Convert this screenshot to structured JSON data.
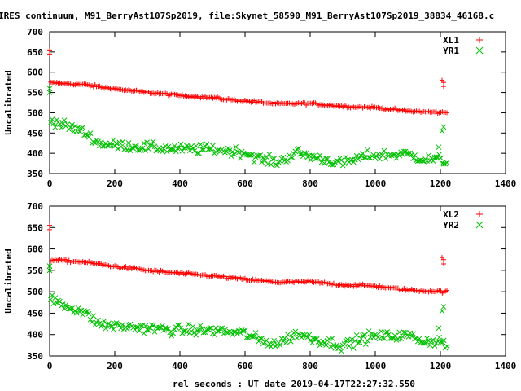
{
  "title": "IRES continuum, M91_BerryAst107Sp2019, file:Skynet_58590_M91_BerryAst107Sp2019_38834_46168.c",
  "chart_data": [
    {
      "type": "scatter",
      "ylabel": "Uncalibrated",
      "xlabel": "",
      "xlim": [
        0,
        1400
      ],
      "ylim": [
        350,
        700
      ],
      "xticks": [
        0,
        200,
        400,
        600,
        800,
        1000,
        1200,
        1400
      ],
      "yticks": [
        350,
        400,
        450,
        500,
        550,
        600,
        650,
        700
      ],
      "legend_position": "top-right",
      "series": [
        {
          "name": "XL1",
          "color": "#ff0000",
          "marker": "plus",
          "trend": [
            [
              3,
              574
            ],
            [
              100,
              570
            ],
            [
              200,
              559
            ],
            [
              300,
              550
            ],
            [
              400,
              543
            ],
            [
              500,
              537
            ],
            [
              600,
              529
            ],
            [
              700,
              522
            ],
            [
              800,
              523
            ],
            [
              900,
              516
            ],
            [
              1000,
              513
            ],
            [
              1100,
              504
            ],
            [
              1220,
              500
            ]
          ],
          "outliers": [
            [
              0,
              655
            ],
            [
              0,
              645
            ],
            [
              1205,
              580
            ],
            [
              1210,
              575
            ],
            [
              1210,
              565
            ]
          ],
          "noise": 3
        },
        {
          "name": "YR1",
          "color": "#00c000",
          "marker": "cross",
          "trend": [
            [
              3,
              483
            ],
            [
              50,
              467
            ],
            [
              100,
              455
            ],
            [
              150,
              425
            ],
            [
              200,
              420
            ],
            [
              300,
              415
            ],
            [
              400,
              410
            ],
            [
              500,
              410
            ],
            [
              600,
              402
            ],
            [
              650,
              385
            ],
            [
              700,
              378
            ],
            [
              760,
              402
            ],
            [
              800,
              392
            ],
            [
              900,
              375
            ],
            [
              980,
              395
            ],
            [
              1000,
              395
            ],
            [
              1100,
              398
            ],
            [
              1150,
              385
            ],
            [
              1200,
              385
            ],
            [
              1220,
              375
            ]
          ],
          "outliers": [
            [
              0,
              550
            ],
            [
              0,
              560
            ],
            [
              1205,
              455
            ],
            [
              1210,
              465
            ],
            [
              1195,
              415
            ]
          ],
          "noise": 12
        }
      ]
    },
    {
      "type": "scatter",
      "ylabel": "Uncalibrated",
      "xlabel": "rel seconds : UT date 2019-04-17T22:27:32.550",
      "xlim": [
        0,
        1400
      ],
      "ylim": [
        350,
        700
      ],
      "xticks": [
        0,
        200,
        400,
        600,
        800,
        1000,
        1200,
        1400
      ],
      "yticks": [
        350,
        400,
        450,
        500,
        550,
        600,
        650,
        700
      ],
      "legend_position": "top-right",
      "series": [
        {
          "name": "XL2",
          "color": "#ff0000",
          "marker": "plus",
          "trend": [
            [
              3,
              574
            ],
            [
              100,
              570
            ],
            [
              200,
              559
            ],
            [
              300,
              550
            ],
            [
              400,
              543
            ],
            [
              500,
              537
            ],
            [
              600,
              529
            ],
            [
              700,
              522
            ],
            [
              800,
              523
            ],
            [
              900,
              516
            ],
            [
              1000,
              513
            ],
            [
              1100,
              504
            ],
            [
              1220,
              500
            ]
          ],
          "outliers": [
            [
              0,
              655
            ],
            [
              0,
              645
            ],
            [
              1205,
              580
            ],
            [
              1210,
              575
            ],
            [
              1210,
              565
            ]
          ],
          "noise": 3
        },
        {
          "name": "YR2",
          "color": "#00c000",
          "marker": "cross",
          "trend": [
            [
              3,
              483
            ],
            [
              50,
              467
            ],
            [
              100,
              455
            ],
            [
              150,
              425
            ],
            [
              200,
              420
            ],
            [
              300,
              415
            ],
            [
              400,
              410
            ],
            [
              500,
              410
            ],
            [
              600,
              402
            ],
            [
              650,
              385
            ],
            [
              700,
              378
            ],
            [
              760,
              402
            ],
            [
              800,
              392
            ],
            [
              900,
              375
            ],
            [
              980,
              395
            ],
            [
              1000,
              395
            ],
            [
              1100,
              398
            ],
            [
              1150,
              385
            ],
            [
              1200,
              385
            ],
            [
              1220,
              375
            ]
          ],
          "outliers": [
            [
              0,
              550
            ],
            [
              0,
              560
            ],
            [
              1205,
              455
            ],
            [
              1210,
              465
            ],
            [
              1195,
              415
            ]
          ],
          "noise": 12
        }
      ]
    }
  ]
}
